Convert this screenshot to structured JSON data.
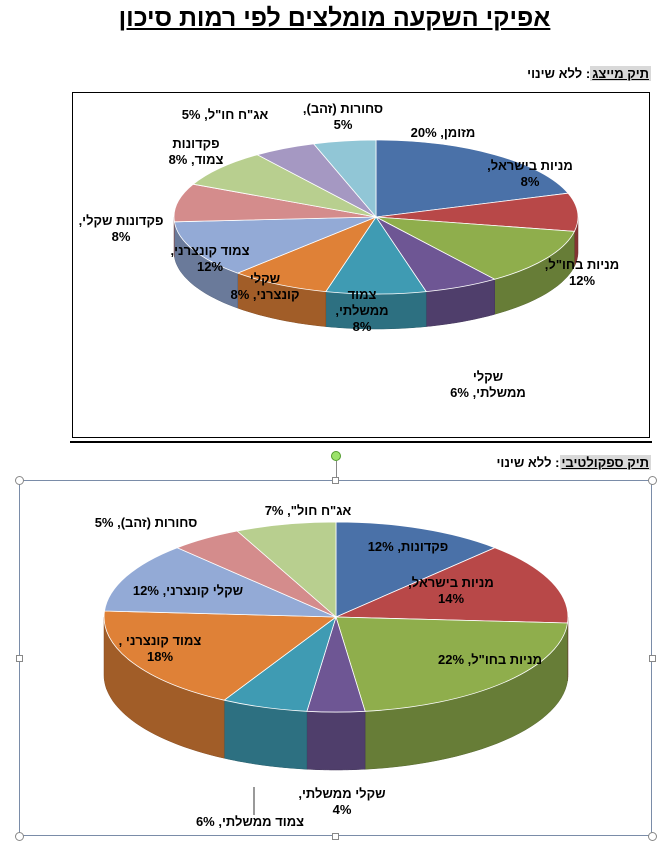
{
  "page": {
    "title": "אפיקי השקעה מומלצים לפי רמות סיכון"
  },
  "sections": [
    {
      "tag": "תיק מייצג",
      "sep": ":",
      "status": "ללא שינוי"
    },
    {
      "tag": "תיק ספקולטיבי",
      "sep": ":",
      "status": "ללא שינוי"
    }
  ],
  "chart_data": [
    {
      "type": "pie",
      "title": "",
      "slices": [
        {
          "lines": [
            "מזומן, 20%"
          ],
          "value": 20,
          "color": "#4a71a8"
        },
        {
          "lines": [
            "מניות בישראל,",
            "8%"
          ],
          "value": 8,
          "color": "#b84848"
        },
        {
          "lines": [
            "מניות בחו\"ל,",
            "12%"
          ],
          "value": 12,
          "color": "#8fae4c"
        },
        {
          "lines": [
            "שקלי",
            "ממשלתי, 6%"
          ],
          "value": 6,
          "color": "#6e5694"
        },
        {
          "lines": [
            "צמוד",
            "ממשלתי,",
            "8%"
          ],
          "value": 8,
          "color": "#3f9bb3"
        },
        {
          "lines": [
            "שקלי",
            "קונצרני, 8%"
          ],
          "value": 8,
          "color": "#df8137"
        },
        {
          "lines": [
            "צמוד קונצרני,",
            "12%"
          ],
          "value": 12,
          "color": "#93aad6"
        },
        {
          "lines": [
            "פקדונות שקלי,",
            "8%"
          ],
          "value": 8,
          "color": "#d48c8c"
        },
        {
          "lines": [
            "פקדונות",
            "צמוד, 8%"
          ],
          "value": 8,
          "color": "#b8cf8f"
        },
        {
          "lines": [
            "אג\"ח חו\"ל, 5%"
          ],
          "value": 5,
          "color": "#a598c2"
        },
        {
          "lines": [
            "סחורות (זהב),",
            "5%"
          ],
          "value": 5,
          "color": "#91c6d6"
        }
      ]
    },
    {
      "type": "pie",
      "title": "",
      "slices": [
        {
          "lines": [
            "פקדונות, 12%"
          ],
          "value": 12,
          "color": "#4a71a8"
        },
        {
          "lines": [
            "מניות בישראל,",
            "14%"
          ],
          "value": 14,
          "color": "#b84848"
        },
        {
          "lines": [
            "מניות בחו\"ל, 22%"
          ],
          "value": 22,
          "color": "#8fae4c"
        },
        {
          "lines": [
            "שקלי ממשלתי,",
            "4%"
          ],
          "value": 4,
          "color": "#6e5694"
        },
        {
          "lines": [
            "צמוד ממשלתי, 6%"
          ],
          "value": 6,
          "color": "#3f9bb3"
        },
        {
          "lines": [
            "צמוד קונצרני ,",
            "18%"
          ],
          "value": 18,
          "color": "#df8137"
        },
        {
          "lines": [
            "שקלי קונצרני, 12%"
          ],
          "value": 12,
          "color": "#93aad6"
        },
        {
          "lines": [
            "סחורות (זהב), 5%"
          ],
          "value": 5,
          "color": "#d48c8c"
        },
        {
          "lines": [
            "אג\"ח חול\", 7%"
          ],
          "value": 7,
          "color": "#b8cf8f"
        }
      ]
    }
  ]
}
